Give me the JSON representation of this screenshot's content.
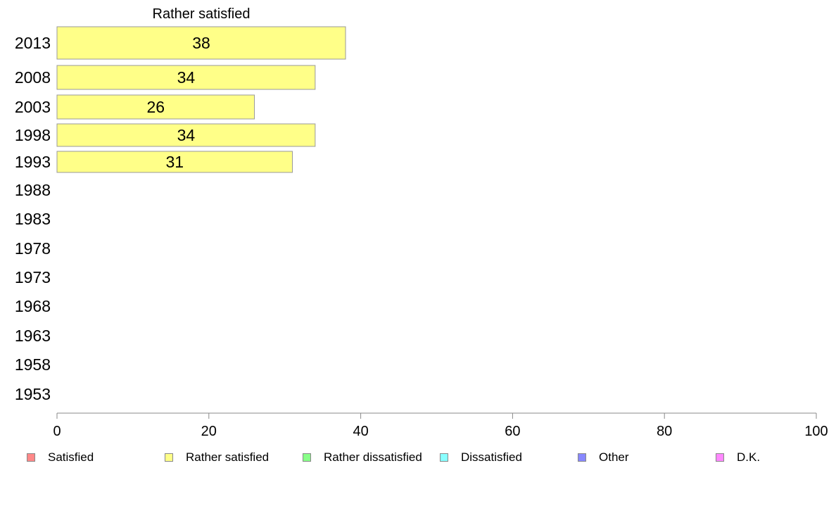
{
  "chart_data": {
    "type": "bar",
    "orientation": "horizontal",
    "title": "Rather satisfied",
    "categories": [
      "2013",
      "2008",
      "2003",
      "1998",
      "1993",
      "1988",
      "1983",
      "1978",
      "1973",
      "1968",
      "1963",
      "1958",
      "1953"
    ],
    "series": [
      {
        "name": "Rather satisfied",
        "color": "#ffff88",
        "values": [
          38,
          34,
          26,
          34,
          31,
          null,
          null,
          null,
          null,
          null,
          null,
          null,
          null
        ]
      }
    ],
    "xlim": [
      0,
      100
    ],
    "xticks": [
      0,
      20,
      40,
      60,
      80,
      100
    ],
    "legend": [
      {
        "label": "Satisfied",
        "color": "#ff8888"
      },
      {
        "label": "Rather satisfied",
        "color": "#ffff88"
      },
      {
        "label": "Rather dissatisfied",
        "color": "#88ff88"
      },
      {
        "label": "Dissatisfied",
        "color": "#88ffff"
      },
      {
        "label": "Other",
        "color": "#8888ff"
      },
      {
        "label": "D.K.",
        "color": "#ff88ff"
      }
    ],
    "legend_position": "bottom",
    "grid": false
  }
}
